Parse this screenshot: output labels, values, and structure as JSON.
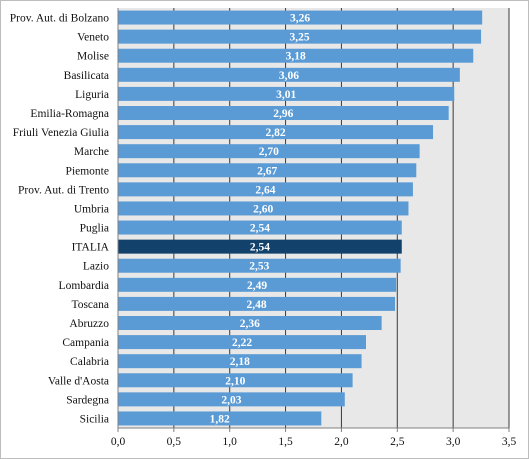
{
  "chart_data": {
    "type": "bar",
    "orientation": "horizontal",
    "categories": [
      "Prov. Aut. di Bolzano",
      "Veneto",
      "Molise",
      "Basilicata",
      "Liguria",
      "Emilia-Romagna",
      "Friuli Venezia Giulia",
      "Marche",
      "Piemonte",
      "Prov. Aut. di Trento",
      "Umbria",
      "Puglia",
      "ITALIA",
      "Lazio",
      "Lombardia",
      "Toscana",
      "Abruzzo",
      "Campania",
      "Calabria",
      "Valle d'Aosta",
      "Sardegna",
      "Sicilia"
    ],
    "values": [
      3.26,
      3.25,
      3.18,
      3.06,
      3.01,
      2.96,
      2.82,
      2.7,
      2.67,
      2.64,
      2.6,
      2.54,
      2.54,
      2.53,
      2.49,
      2.48,
      2.36,
      2.22,
      2.18,
      2.1,
      2.03,
      1.82
    ],
    "value_labels": [
      "3,26",
      "3,25",
      "3,18",
      "3,06",
      "3,01",
      "2,96",
      "2,82",
      "2,70",
      "2,67",
      "2,64",
      "2,60",
      "2,54",
      "2,54",
      "2,53",
      "2,49",
      "2,48",
      "2,36",
      "2,22",
      "2,18",
      "2,10",
      "2,03",
      "1,82"
    ],
    "highlight_category": "ITALIA",
    "xlim": [
      0,
      3.5
    ],
    "x_ticks": [
      0,
      0.5,
      1,
      1.5,
      2,
      2.5,
      3,
      3.5
    ],
    "x_tick_labels": [
      "0,0",
      "0,5",
      "1,0",
      "1,5",
      "2,0",
      "2,5",
      "3,0",
      "3,5"
    ],
    "grid": "vertical",
    "title": "",
    "xlabel": "",
    "ylabel": "",
    "colors": {
      "bar": "#5b9bd5",
      "bar_highlight": "#12416b",
      "plot_background": "#e8e8e8",
      "gridline": "#3a3a3a",
      "axis": "#7f7f7f"
    }
  }
}
